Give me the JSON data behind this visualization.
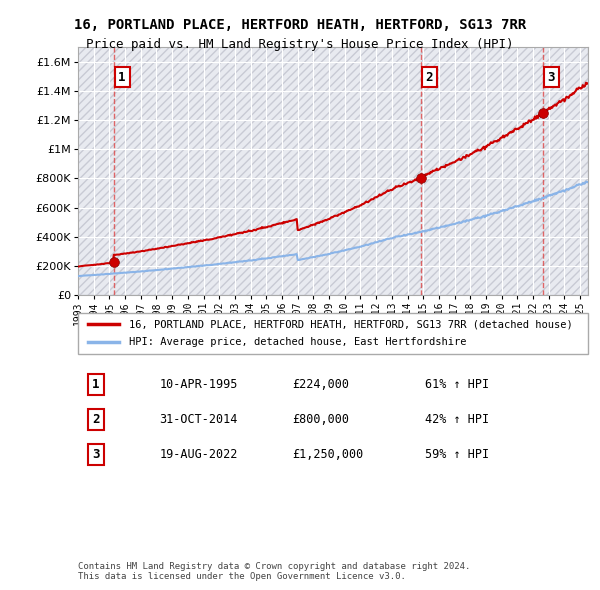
{
  "title": "16, PORTLAND PLACE, HERTFORD HEATH, HERTFORD, SG13 7RR",
  "subtitle": "Price paid vs. HM Land Registry's House Price Index (HPI)",
  "ylim": [
    0,
    1700000
  ],
  "yticks": [
    0,
    200000,
    400000,
    600000,
    800000,
    1000000,
    1200000,
    1400000,
    1600000
  ],
  "ytick_labels": [
    "£0",
    "£200K",
    "£400K",
    "£600K",
    "£800K",
    "£1M",
    "£1.2M",
    "£1.4M",
    "£1.6M"
  ],
  "background_color": "#ffffff",
  "chart_bg_color": "#e8eaf0",
  "grid_color": "#ffffff",
  "hatch_color": "#c8cad4",
  "sale_color": "#cc0000",
  "hpi_color": "#8ab4e8",
  "vline_color": "#dd4444",
  "purchases": [
    {
      "date_num": 1995.27,
      "price": 224000,
      "label": "1"
    },
    {
      "date_num": 2014.83,
      "price": 800000,
      "label": "2"
    },
    {
      "date_num": 2022.63,
      "price": 1250000,
      "label": "3"
    }
  ],
  "legend_entries": [
    "16, PORTLAND PLACE, HERTFORD HEATH, HERTFORD, SG13 7RR (detached house)",
    "HPI: Average price, detached house, East Hertfordshire"
  ],
  "table_rows": [
    {
      "num": "1",
      "date": "10-APR-1995",
      "price": "£224,000",
      "change": "61% ↑ HPI"
    },
    {
      "num": "2",
      "date": "31-OCT-2014",
      "price": "£800,000",
      "change": "42% ↑ HPI"
    },
    {
      "num": "3",
      "date": "19-AUG-2022",
      "price": "£1,250,000",
      "change": "59% ↑ HPI"
    }
  ],
  "footnote": "Contains HM Land Registry data © Crown copyright and database right 2024.\nThis data is licensed under the Open Government Licence v3.0.",
  "xlim_start": 1993.0,
  "xlim_end": 2025.5
}
